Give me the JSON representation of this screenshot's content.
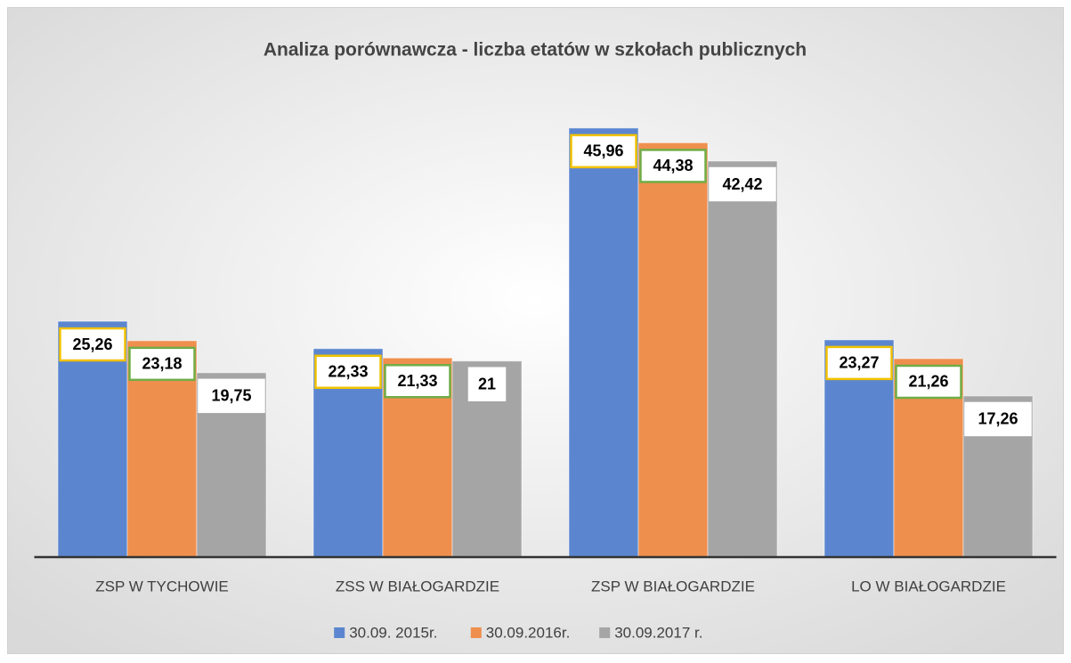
{
  "chart_data": {
    "type": "bar",
    "title": "Analiza porównawcza - liczba etatów w szkołach publicznych",
    "categories": [
      "ZSP W TYCHOWIE",
      "ZSS W BIAŁOGARDZIE",
      "ZSP W BIAŁOGARDZIE",
      "LO W BIAŁOGARDZIE"
    ],
    "series": [
      {
        "name": "30.09. 2015r.",
        "color": "#5b86cf",
        "values": [
          25.26,
          22.33,
          45.96,
          23.27
        ],
        "value_labels": [
          "25,26",
          "22,33",
          "45,96",
          "23,27"
        ]
      },
      {
        "name": "30.09.2016r.",
        "color": "#ef8f4e",
        "values": [
          23.18,
          21.33,
          44.38,
          21.26
        ],
        "value_labels": [
          "23,18",
          "21,33",
          "44,38",
          "21,26"
        ]
      },
      {
        "name": "30.09.2017 r.",
        "color": "#a5a5a5",
        "values": [
          19.75,
          21,
          42.42,
          17.26
        ],
        "value_labels": [
          "19,75",
          "21",
          "42,42",
          "17,26"
        ]
      }
    ],
    "ylim": [
      0,
      50
    ],
    "legend": "bottom"
  }
}
